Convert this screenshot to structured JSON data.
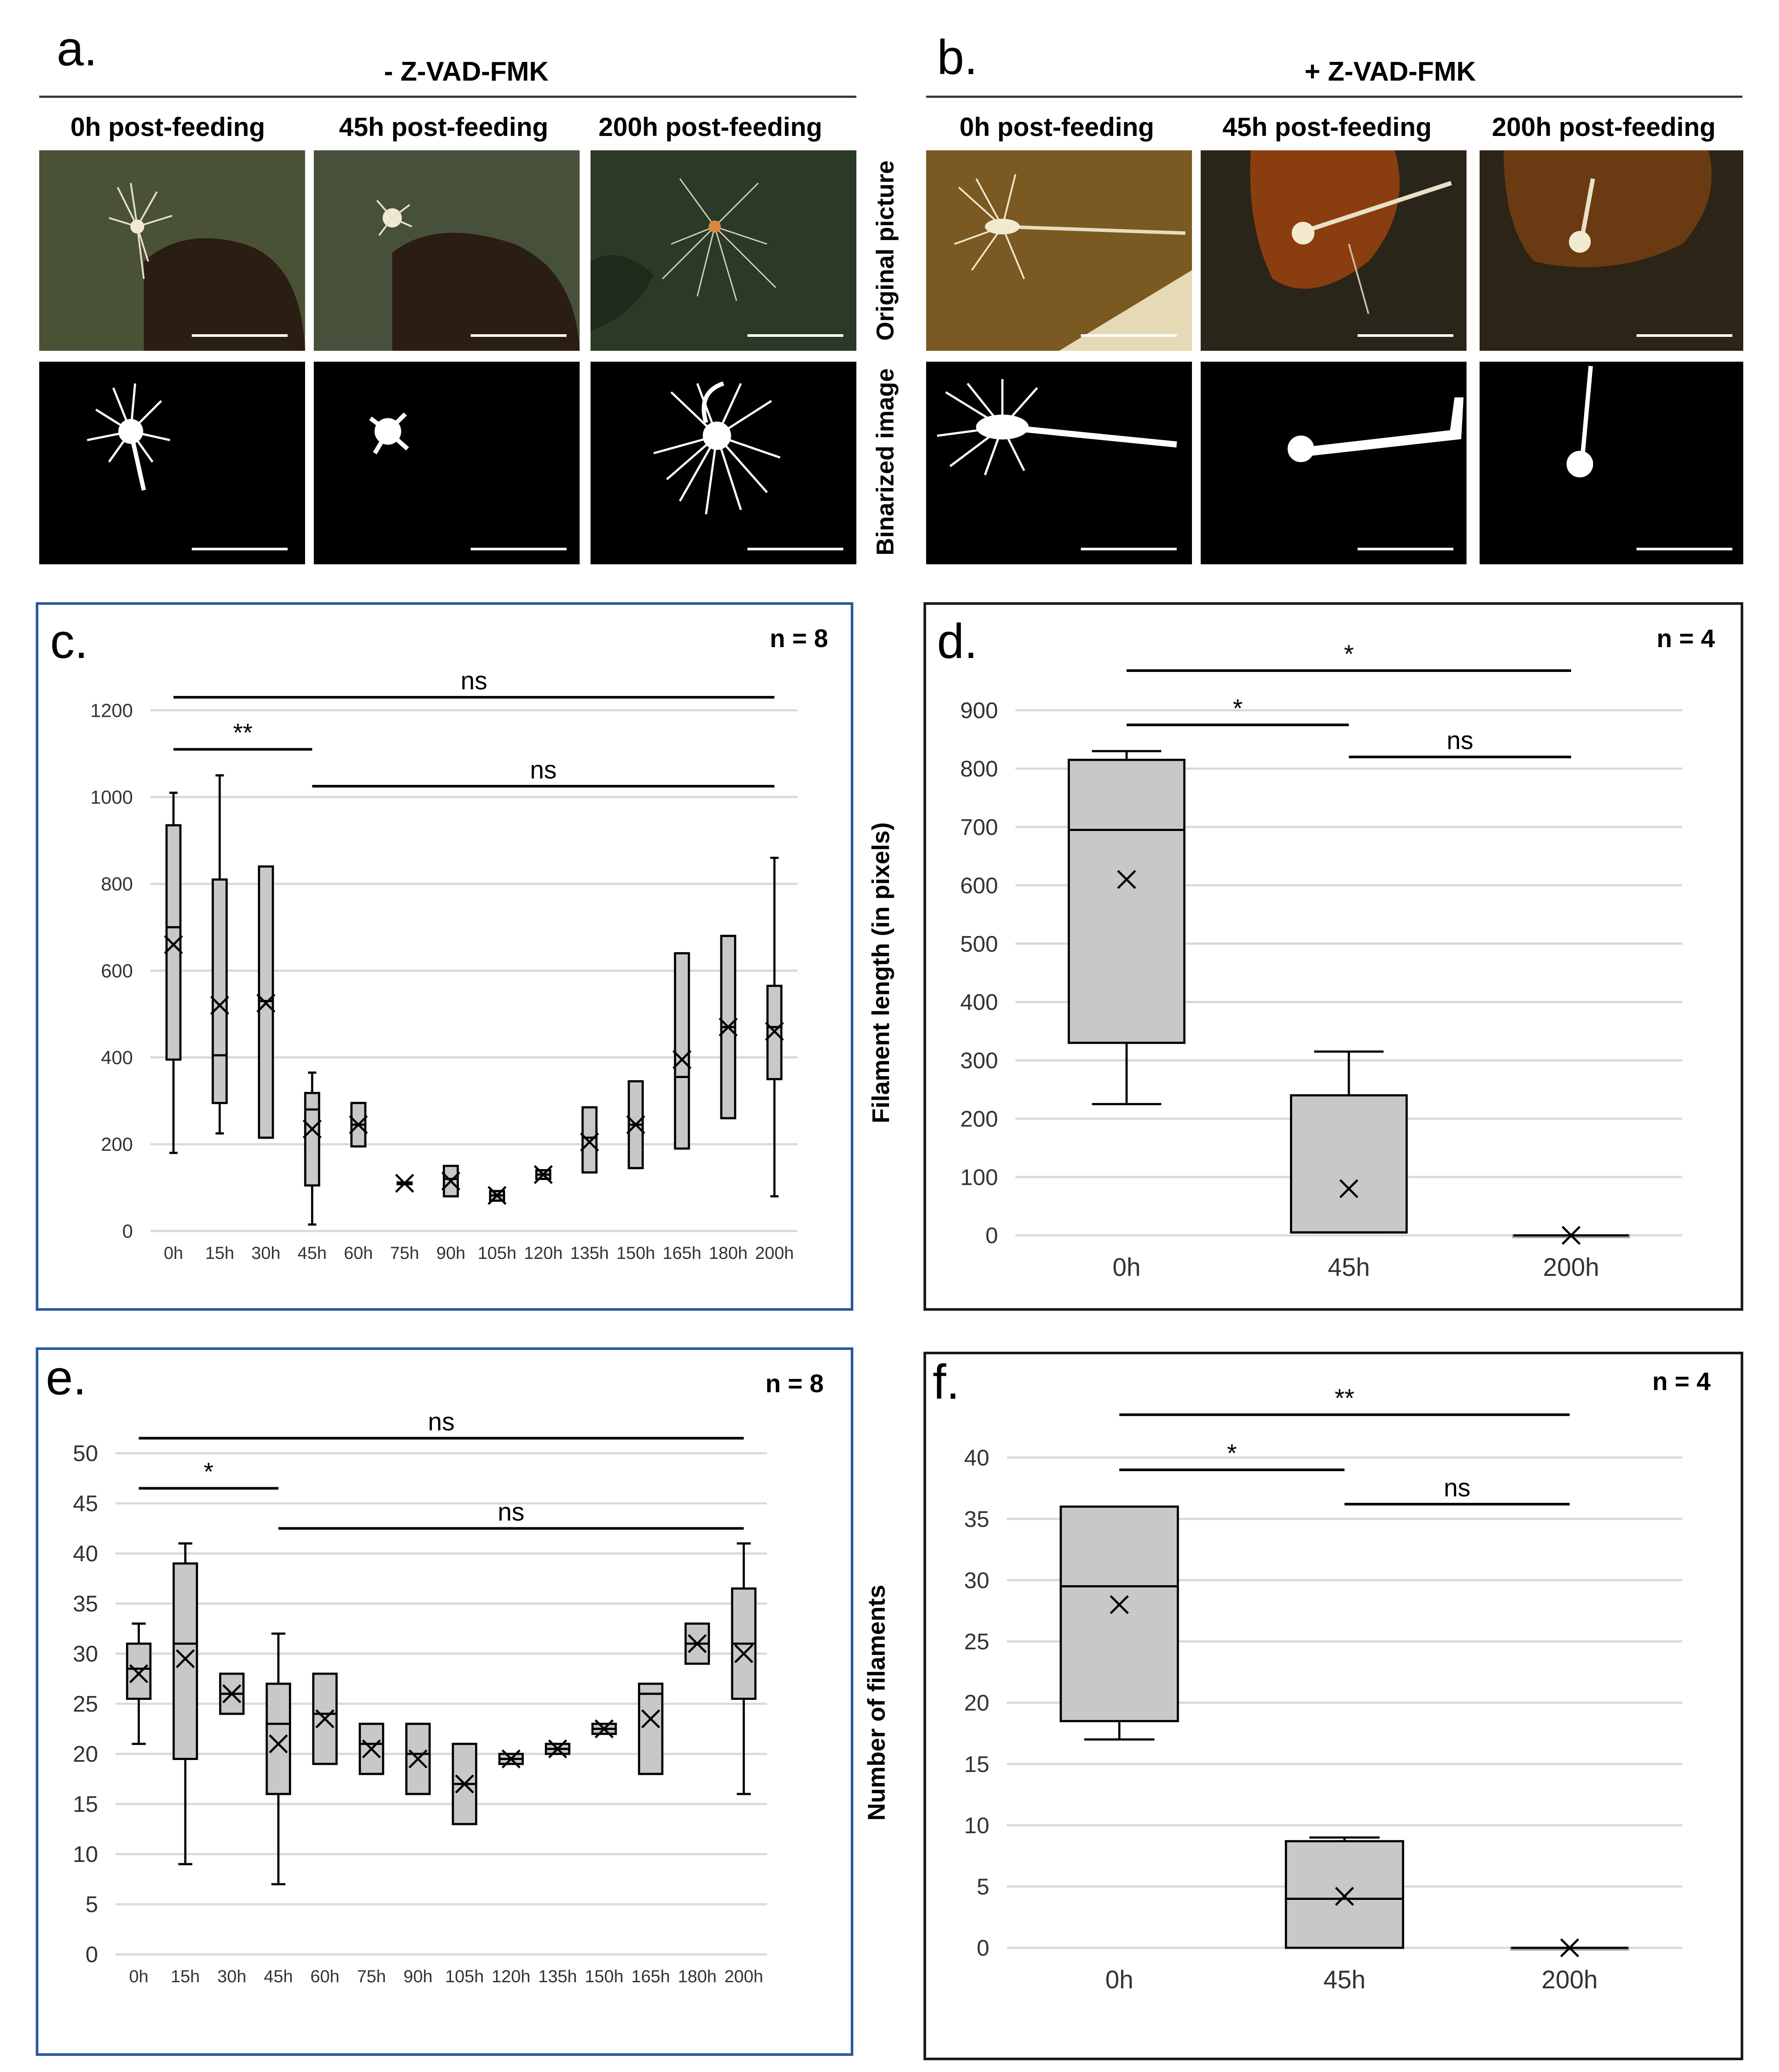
{
  "panels": {
    "a": {
      "label": "a.",
      "header": "- Z-VAD-FMK"
    },
    "b": {
      "label": "b.",
      "header": "+ Z-VAD-FMK"
    },
    "subtitles": [
      "0h post-feeding",
      "45h post-feeding",
      "200h post-feeding"
    ],
    "row_labels": {
      "original": "Original picture",
      "binarized": "Binarized image"
    }
  },
  "photo_colors": {
    "a": [
      "#4a5236",
      "#47503a",
      "#2b3a26"
    ],
    "b": [
      "#7a5a22",
      "#2a2519",
      "#2b2417"
    ],
    "blob": "#f2ead0",
    "scale_bar": "#ffffff"
  },
  "chart_data": [
    {
      "id": "c",
      "label": "c.",
      "n_label": "n = 8",
      "type": "box",
      "ylabel": "",
      "xlabel": "",
      "categories": [
        "0h",
        "15h",
        "30h",
        "45h",
        "60h",
        "75h",
        "90h",
        "105h",
        "120h",
        "135h",
        "150h",
        "165h",
        "180h",
        "200h"
      ],
      "ylim": [
        0,
        1200
      ],
      "yticks": [
        0,
        200,
        400,
        600,
        800,
        1000,
        1200
      ],
      "boxes": [
        {
          "min": 180,
          "q1": 395,
          "median": 700,
          "q3": 935,
          "max": 1010,
          "mean": 660
        },
        {
          "min": 225,
          "q1": 295,
          "median": 405,
          "q3": 810,
          "max": 1050,
          "mean": 520
        },
        {
          "min": 215,
          "q1": 215,
          "median": 530,
          "q3": 840,
          "max": 840,
          "mean": 525
        },
        {
          "min": 15,
          "q1": 105,
          "median": 280,
          "q3": 318,
          "max": 365,
          "mean": 235
        },
        {
          "min": 195,
          "q1": 195,
          "median": 245,
          "q3": 295,
          "max": 295,
          "mean": 245
        },
        {
          "min": 108,
          "q1": 108,
          "median": 110,
          "q3": 112,
          "max": 112,
          "mean": 110
        },
        {
          "min": 80,
          "q1": 80,
          "median": 120,
          "q3": 150,
          "max": 150,
          "mean": 115
        },
        {
          "min": 70,
          "q1": 70,
          "median": 82,
          "q3": 92,
          "max": 92,
          "mean": 82
        },
        {
          "min": 120,
          "q1": 120,
          "median": 130,
          "q3": 140,
          "max": 140,
          "mean": 130
        },
        {
          "min": 135,
          "q1": 135,
          "median": 215,
          "q3": 285,
          "max": 285,
          "mean": 205
        },
        {
          "min": 145,
          "q1": 145,
          "median": 245,
          "q3": 345,
          "max": 345,
          "mean": 245
        },
        {
          "min": 190,
          "q1": 190,
          "median": 355,
          "q3": 640,
          "max": 640,
          "mean": 395
        },
        {
          "min": 260,
          "q1": 260,
          "median": 470,
          "q3": 680,
          "max": 680,
          "mean": 470
        },
        {
          "min": 80,
          "q1": 350,
          "median": 470,
          "q3": 565,
          "max": 860,
          "mean": 460
        }
      ],
      "significance": [
        {
          "from": 0,
          "to": 13,
          "at": 1230,
          "text": "ns"
        },
        {
          "from": 0,
          "to": 3,
          "at": 1110,
          "text": "**"
        },
        {
          "from": 3,
          "to": 13,
          "at": 1025,
          "text": "ns"
        }
      ],
      "frame_color": "#2e5a9c"
    },
    {
      "id": "d",
      "label": "d.",
      "n_label": "n = 4",
      "type": "box",
      "ylabel": "Filament length (in pixels)",
      "xlabel": "",
      "categories": [
        "0h",
        "45h",
        "200h"
      ],
      "ylim": [
        0,
        900
      ],
      "yticks": [
        0,
        100,
        200,
        300,
        400,
        500,
        600,
        700,
        800,
        900
      ],
      "boxes": [
        {
          "min": 225,
          "q1": 330,
          "median": 695,
          "q3": 815,
          "max": 830,
          "mean": 610
        },
        {
          "min": 5,
          "q1": 5,
          "median": 5,
          "q3": 240,
          "max": 315,
          "mean": 80
        },
        {
          "min": 0,
          "q1": 0,
          "median": 0,
          "q3": 0,
          "max": 0,
          "mean": 0
        }
      ],
      "significance": [
        {
          "from": 0,
          "to": 2,
          "at": 968,
          "text": "*"
        },
        {
          "from": 0,
          "to": 1,
          "at": 875,
          "text": "*"
        },
        {
          "from": 1,
          "to": 2,
          "at": 820,
          "text": "ns"
        }
      ],
      "frame_color": "#1a1a1a"
    },
    {
      "id": "e",
      "label": "e.",
      "n_label": "n = 8",
      "type": "box",
      "ylabel": "",
      "xlabel": "",
      "categories": [
        "0h",
        "15h",
        "30h",
        "45h",
        "60h",
        "75h",
        "90h",
        "105h",
        "120h",
        "135h",
        "150h",
        "165h",
        "180h",
        "200h"
      ],
      "ylim": [
        0,
        50
      ],
      "yticks": [
        0,
        5,
        10,
        15,
        20,
        25,
        30,
        35,
        40,
        45,
        50
      ],
      "boxes": [
        {
          "min": 21,
          "q1": 25.5,
          "median": 28.5,
          "q3": 31,
          "max": 33,
          "mean": 28
        },
        {
          "min": 9,
          "q1": 19.5,
          "median": 31,
          "q3": 39,
          "max": 41,
          "mean": 29.5
        },
        {
          "min": 24,
          "q1": 24,
          "median": 26,
          "q3": 28,
          "max": 28,
          "mean": 26
        },
        {
          "min": 7,
          "q1": 16,
          "median": 23,
          "q3": 27,
          "max": 32,
          "mean": 21
        },
        {
          "min": 19,
          "q1": 19,
          "median": 24,
          "q3": 28,
          "max": 28,
          "mean": 23.5
        },
        {
          "min": 18,
          "q1": 18,
          "median": 21,
          "q3": 23,
          "max": 23,
          "mean": 20.5
        },
        {
          "min": 16,
          "q1": 16,
          "median": 20,
          "q3": 23,
          "max": 23,
          "mean": 19.5
        },
        {
          "min": 13,
          "q1": 13,
          "median": 17,
          "q3": 21,
          "max": 21,
          "mean": 17
        },
        {
          "min": 19,
          "q1": 19,
          "median": 19.5,
          "q3": 20,
          "max": 20,
          "mean": 19.5
        },
        {
          "min": 20,
          "q1": 20,
          "median": 20.5,
          "q3": 21,
          "max": 21,
          "mean": 20.5
        },
        {
          "min": 22,
          "q1": 22,
          "median": 22.5,
          "q3": 23,
          "max": 23,
          "mean": 22.5
        },
        {
          "min": 18,
          "q1": 18,
          "median": 26,
          "q3": 27,
          "max": 27,
          "mean": 23.5
        },
        {
          "min": 29,
          "q1": 29,
          "median": 31,
          "q3": 33,
          "max": 33,
          "mean": 31
        },
        {
          "min": 16,
          "q1": 25.5,
          "median": 31,
          "q3": 36.5,
          "max": 41,
          "mean": 30
        }
      ],
      "significance": [
        {
          "from": 0,
          "to": 13,
          "at": 51.5,
          "text": "ns"
        },
        {
          "from": 0,
          "to": 3,
          "at": 46.5,
          "text": "*"
        },
        {
          "from": 3,
          "to": 13,
          "at": 42.5,
          "text": "ns"
        }
      ],
      "frame_color": "#2e5a9c"
    },
    {
      "id": "f",
      "label": "f.",
      "n_label": "n = 4",
      "type": "box",
      "ylabel": "Number of filaments",
      "xlabel": "",
      "categories": [
        "0h",
        "45h",
        "200h"
      ],
      "ylim": [
        0,
        40
      ],
      "yticks": [
        0,
        5,
        10,
        15,
        20,
        25,
        30,
        35,
        40
      ],
      "boxes": [
        {
          "min": 17,
          "q1": 18.5,
          "median": 29.5,
          "q3": 36,
          "max": 36,
          "mean": 28
        },
        {
          "min": 0,
          "q1": 0,
          "median": 4,
          "q3": 8.7,
          "max": 9,
          "mean": 4.2
        },
        {
          "min": 0,
          "q1": 0,
          "median": 0,
          "q3": 0,
          "max": 0,
          "mean": 0
        }
      ],
      "significance": [
        {
          "from": 0,
          "to": 2,
          "at": 43.5,
          "text": "**"
        },
        {
          "from": 0,
          "to": 1,
          "at": 39,
          "text": "*"
        },
        {
          "from": 1,
          "to": 2,
          "at": 36.2,
          "text": "ns"
        }
      ],
      "frame_color": "#1a1a1a"
    }
  ]
}
